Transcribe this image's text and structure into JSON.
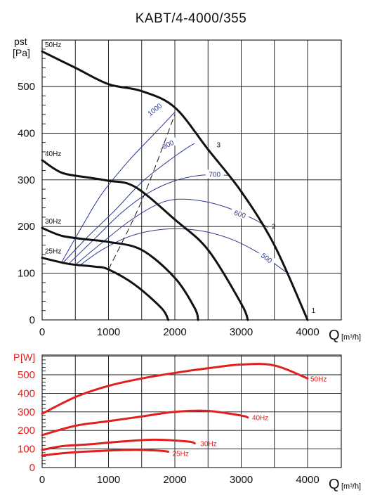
{
  "chart_data": [
    {
      "type": "line",
      "title": "KABT/4-4000/355",
      "ylabel": "pst",
      "yunit": "[Pa]",
      "xlabel": "Q",
      "xunit": "[m³/h]",
      "xlim": [
        0,
        4000
      ],
      "ylim": [
        0,
        600
      ],
      "x_ticks": [
        "0",
        "1000",
        "2000",
        "3000",
        "4000"
      ],
      "y_ticks": [
        "0",
        "100",
        "200",
        "300",
        "400",
        "500"
      ],
      "grid": true,
      "series": [
        {
          "name": "50Hz",
          "x": [
            0,
            500,
            1000,
            1500,
            2000,
            2500,
            3000,
            3500,
            4000
          ],
          "y": [
            575,
            540,
            505,
            490,
            455,
            365,
            275,
            160,
            0
          ]
        },
        {
          "name": "40Hz",
          "x": [
            0,
            300,
            700,
            1000,
            1400,
            2000,
            2500,
            3000,
            3100
          ],
          "y": [
            342,
            315,
            305,
            298,
            285,
            215,
            150,
            35,
            0
          ]
        },
        {
          "name": "30Hz",
          "x": [
            0,
            300,
            700,
            1000,
            1500,
            2000,
            2300,
            2350
          ],
          "y": [
            197,
            180,
            172,
            167,
            150,
            90,
            25,
            0
          ]
        },
        {
          "name": "25Hz",
          "x": [
            0,
            400,
            800,
            1000,
            1400,
            1800,
            1900
          ],
          "y": [
            133,
            120,
            114,
            108,
            75,
            25,
            0
          ]
        }
      ],
      "rpm_curves": [
        {
          "label": "1000",
          "x": [
            300,
            600,
            900,
            1300,
            1700,
            2000
          ],
          "y": [
            125,
            200,
            270,
            340,
            400,
            445
          ]
        },
        {
          "label": "800",
          "x": [
            300,
            700,
            1100,
            1500,
            1900,
            2200,
            2300
          ],
          "y": [
            120,
            180,
            235,
            295,
            340,
            370,
            378
          ]
        },
        {
          "label": "700",
          "x": [
            400,
            800,
            1200,
            1600,
            2000,
            2400,
            2800
          ],
          "y": [
            120,
            175,
            230,
            272,
            298,
            310,
            310
          ]
        },
        {
          "label": "600",
          "x": [
            500,
            900,
            1300,
            1700,
            2000,
            2400,
            2800,
            3200,
            3400
          ],
          "y": [
            118,
            165,
            210,
            245,
            258,
            255,
            240,
            215,
            198
          ]
        },
        {
          "label": "500",
          "x": [
            550,
            900,
            1300,
            1700,
            2100,
            2500,
            2900,
            3300,
            3700
          ],
          "y": [
            115,
            150,
            178,
            192,
            195,
            188,
            170,
            140,
            100
          ]
        }
      ],
      "system_line": {
        "x": [
          1000,
          1500,
          2000
        ],
        "y": [
          108,
          255,
          440
        ]
      },
      "point_labels": [
        "1",
        "2",
        "3"
      ],
      "point_positions": [
        {
          "label": "3",
          "x": 2630,
          "y": 370
        },
        {
          "label": "2",
          "x": 3460,
          "y": 195
        },
        {
          "label": "1",
          "x": 4060,
          "y": 15
        }
      ]
    },
    {
      "type": "line",
      "ylabel": "P",
      "yunit": "[W]",
      "xlabel": "Q",
      "xunit": "[m³/h]",
      "xlim": [
        0,
        4000
      ],
      "ylim": [
        0,
        600
      ],
      "x_ticks": [
        "0",
        "1000",
        "2000",
        "3000",
        "4000"
      ],
      "y_ticks": [
        "0",
        "100",
        "200",
        "300",
        "400",
        "500"
      ],
      "grid": true,
      "series": [
        {
          "name": "50Hz",
          "x": [
            0,
            500,
            1000,
            1500,
            2000,
            2500,
            3000,
            3500,
            4000
          ],
          "y": [
            290,
            380,
            440,
            480,
            510,
            535,
            555,
            550,
            480
          ]
        },
        {
          "name": "40Hz",
          "x": [
            0,
            500,
            1000,
            1500,
            2000,
            2500,
            3000,
            3100
          ],
          "y": [
            175,
            225,
            250,
            275,
            300,
            305,
            280,
            270
          ]
        },
        {
          "name": "30Hz",
          "x": [
            0,
            300,
            700,
            1200,
            1700,
            2200,
            2300
          ],
          "y": [
            95,
            115,
            125,
            140,
            150,
            140,
            130
          ]
        },
        {
          "name": "25Hz",
          "x": [
            0,
            400,
            900,
            1400,
            1800,
            1900
          ],
          "y": [
            65,
            80,
            90,
            95,
            90,
            85
          ]
        }
      ]
    }
  ]
}
